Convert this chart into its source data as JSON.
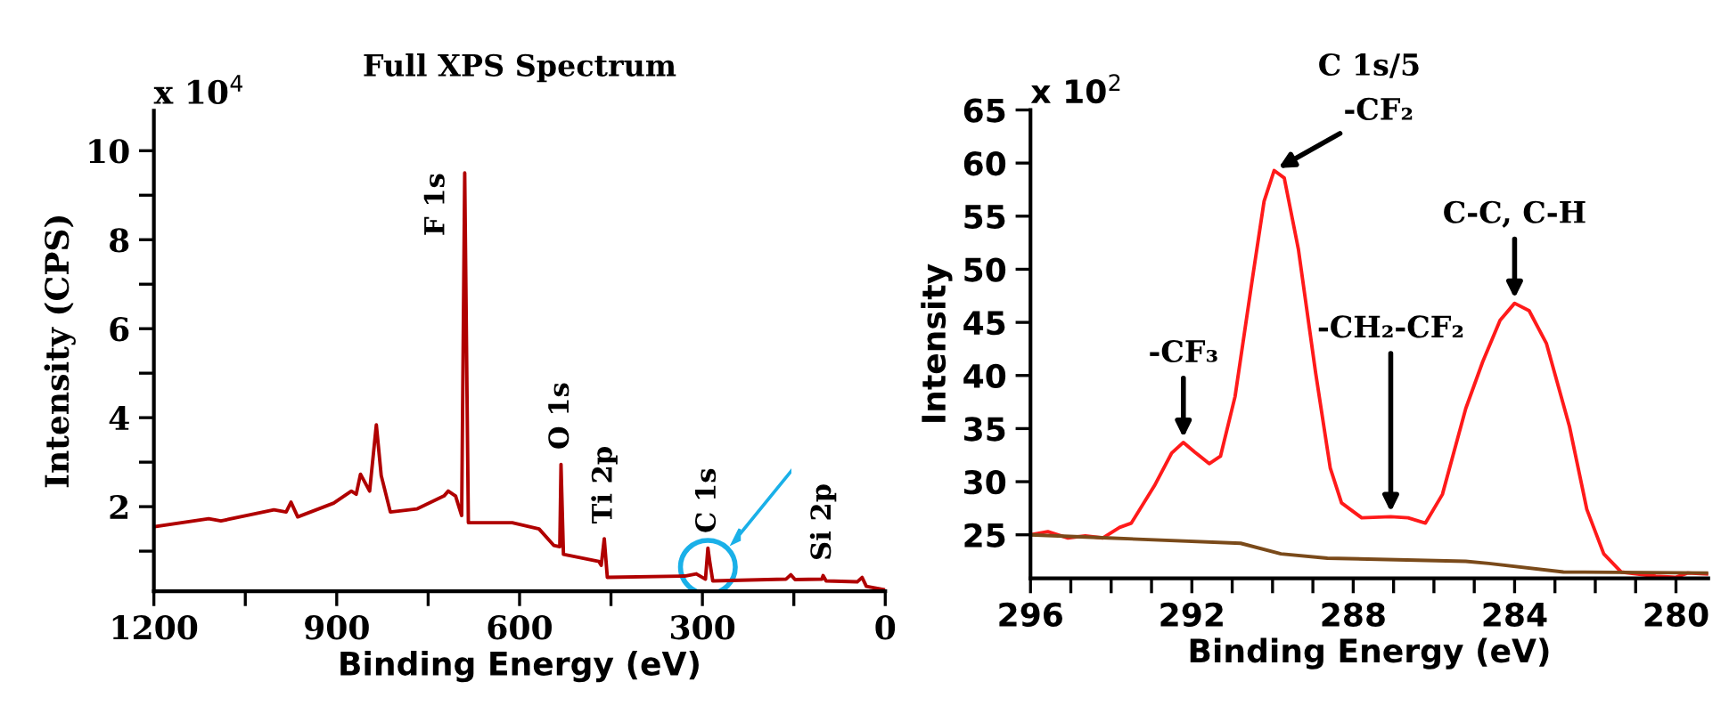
{
  "chart_data": [
    {
      "type": "line",
      "title": "Full XPS Spectrum",
      "xlabel": "Binding Energy (eV)",
      "ylabel": "Intensity (CPS)",
      "xlim": [
        1200,
        0
      ],
      "xticks": [
        1200,
        {
          "value": 1050,
          "label": null
        },
        900,
        {
          "value": 750,
          "label": null
        },
        600,
        {
          "value": 450,
          "label": null
        },
        300,
        {
          "value": 150,
          "label": null
        },
        0
      ],
      "ylim": [
        0.1,
        10.9
      ],
      "yticks": [
        {
          "value": 1,
          "label": null
        },
        2,
        {
          "value": 3,
          "label": null
        },
        4,
        {
          "value": 5,
          "label": null
        },
        6,
        {
          "value": 7,
          "label": null
        },
        8,
        {
          "value": 9,
          "label": null
        },
        10
      ],
      "grid": false,
      "legend": false,
      "marker": "none",
      "line_style": "solid",
      "series": [
        {
          "color": "#b00000",
          "x": [
            1200,
            1110,
            1090,
            1003,
            983,
            975,
            964,
            905,
            876,
            868,
            861,
            846,
            835,
            827,
            812,
            768,
            724,
            717,
            705,
            695,
            690,
            684,
            612,
            568,
            544,
            534,
            532,
            528,
            470,
            466,
            461,
            456,
            329,
            310,
            295,
            291,
            288,
            283,
            163,
            155,
            148,
            104,
            102,
            97,
            46,
            38,
            31,
            0
          ],
          "values": [
            1.55,
            1.73,
            1.68,
            1.93,
            1.88,
            2.1,
            1.77,
            2.08,
            2.35,
            2.28,
            2.73,
            2.35,
            3.84,
            2.7,
            1.88,
            1.95,
            2.24,
            2.35,
            2.24,
            1.8,
            9.5,
            1.64,
            1.64,
            1.5,
            1.13,
            1.1,
            2.95,
            0.93,
            0.77,
            0.68,
            1.28,
            0.41,
            0.44,
            0.49,
            0.37,
            1.07,
            0.77,
            0.33,
            0.37,
            0.47,
            0.36,
            0.37,
            0.45,
            0.33,
            0.31,
            0.41,
            0.21,
            0.13
          ]
        }
      ],
      "annotations": [
        "x 10$^{4}$",
        {
          "text": "F 1s",
          "x": 690,
          "y": 9.5
        },
        {
          "text": "O 1s",
          "x": 532,
          "y": 2.95
        },
        {
          "text": "Ti 2p",
          "x": 461,
          "y": 1.28
        },
        {
          "text": "C 1s",
          "x": 291,
          "y": 1.07
        },
        {
          "text": "Si 2p",
          "x": 102,
          "y": 0.45
        }
      ]
    },
    {
      "type": "line",
      "title": "C 1s/5",
      "xlabel": "Binding Energy (eV)",
      "ylabel": "Intensity",
      "xlim": [
        296,
        279.2
      ],
      "xticks": [
        296,
        {
          "value": 295,
          "label": null
        },
        {
          "value": 294,
          "label": null
        },
        {
          "value": 293,
          "label": null
        },
        292,
        {
          "value": 291,
          "label": null
        },
        {
          "value": 290,
          "label": null
        },
        {
          "value": 289,
          "label": null
        },
        288,
        {
          "value": 287,
          "label": null
        },
        {
          "value": 286,
          "label": null
        },
        {
          "value": 285,
          "label": null
        },
        284,
        {
          "value": 283,
          "label": null
        },
        {
          "value": 282,
          "label": null
        },
        {
          "value": 281,
          "label": null
        },
        280
      ],
      "ylim": [
        20.9,
        65
      ],
      "yticks": [
        25,
        30,
        35,
        40,
        45,
        50,
        55,
        60,
        65
      ],
      "grid": false,
      "legend": false,
      "marker": "none",
      "line_style": "solid",
      "series": [
        {
          "color": "#ff1a1a",
          "x": [
            296,
            295.57,
            295.07,
            294.64,
            294.21,
            293.79,
            293.5,
            292.93,
            292.5,
            292.21,
            291.93,
            291.57,
            291.29,
            290.93,
            290.5,
            290.21,
            289.96,
            289.71,
            289.36,
            288.93,
            288.57,
            288.29,
            287.79,
            287.07,
            286.64,
            286.21,
            285.79,
            285.21,
            284.79,
            284.36,
            284.0,
            283.64,
            283.21,
            282.64,
            282.21,
            281.79,
            281.36,
            280.5,
            280.0,
            279.71,
            279.21
          ],
          "values": [
            25.0,
            25.3,
            24.7,
            24.9,
            24.7,
            25.7,
            26.1,
            29.6,
            32.7,
            33.7,
            32.8,
            31.7,
            32.4,
            38.0,
            49.1,
            56.4,
            59.3,
            58.6,
            51.9,
            40.2,
            31.3,
            28.0,
            26.6,
            26.7,
            26.6,
            26.1,
            28.8,
            36.9,
            41.3,
            45.2,
            46.8,
            46.1,
            43.0,
            35.2,
            27.4,
            23.2,
            21.5,
            21.1,
            21.0,
            21.4,
            21.3
          ]
        },
        {
          "color": "#7a4a1a",
          "x": [
            296,
            294.07,
            290.79,
            289.79,
            288.64,
            285.21,
            284.64,
            282.79,
            279.21
          ],
          "values": [
            25,
            24.7,
            24.2,
            23.2,
            22.8,
            22.5,
            22.3,
            21.5,
            21.4
          ]
        }
      ],
      "annotations": [
        "x 10$^{2}$",
        {
          "text": "-CF₃",
          "x": 292.21,
          "y": 33.7
        },
        {
          "text": "-CF₂",
          "x": 289.96,
          "y": 59.3
        },
        {
          "text": "-CH₂-CF₂",
          "x": 287.07,
          "y": 26.7
        },
        {
          "text": "C-C, C-H",
          "x": 284.0,
          "y": 46.8
        }
      ]
    }
  ]
}
